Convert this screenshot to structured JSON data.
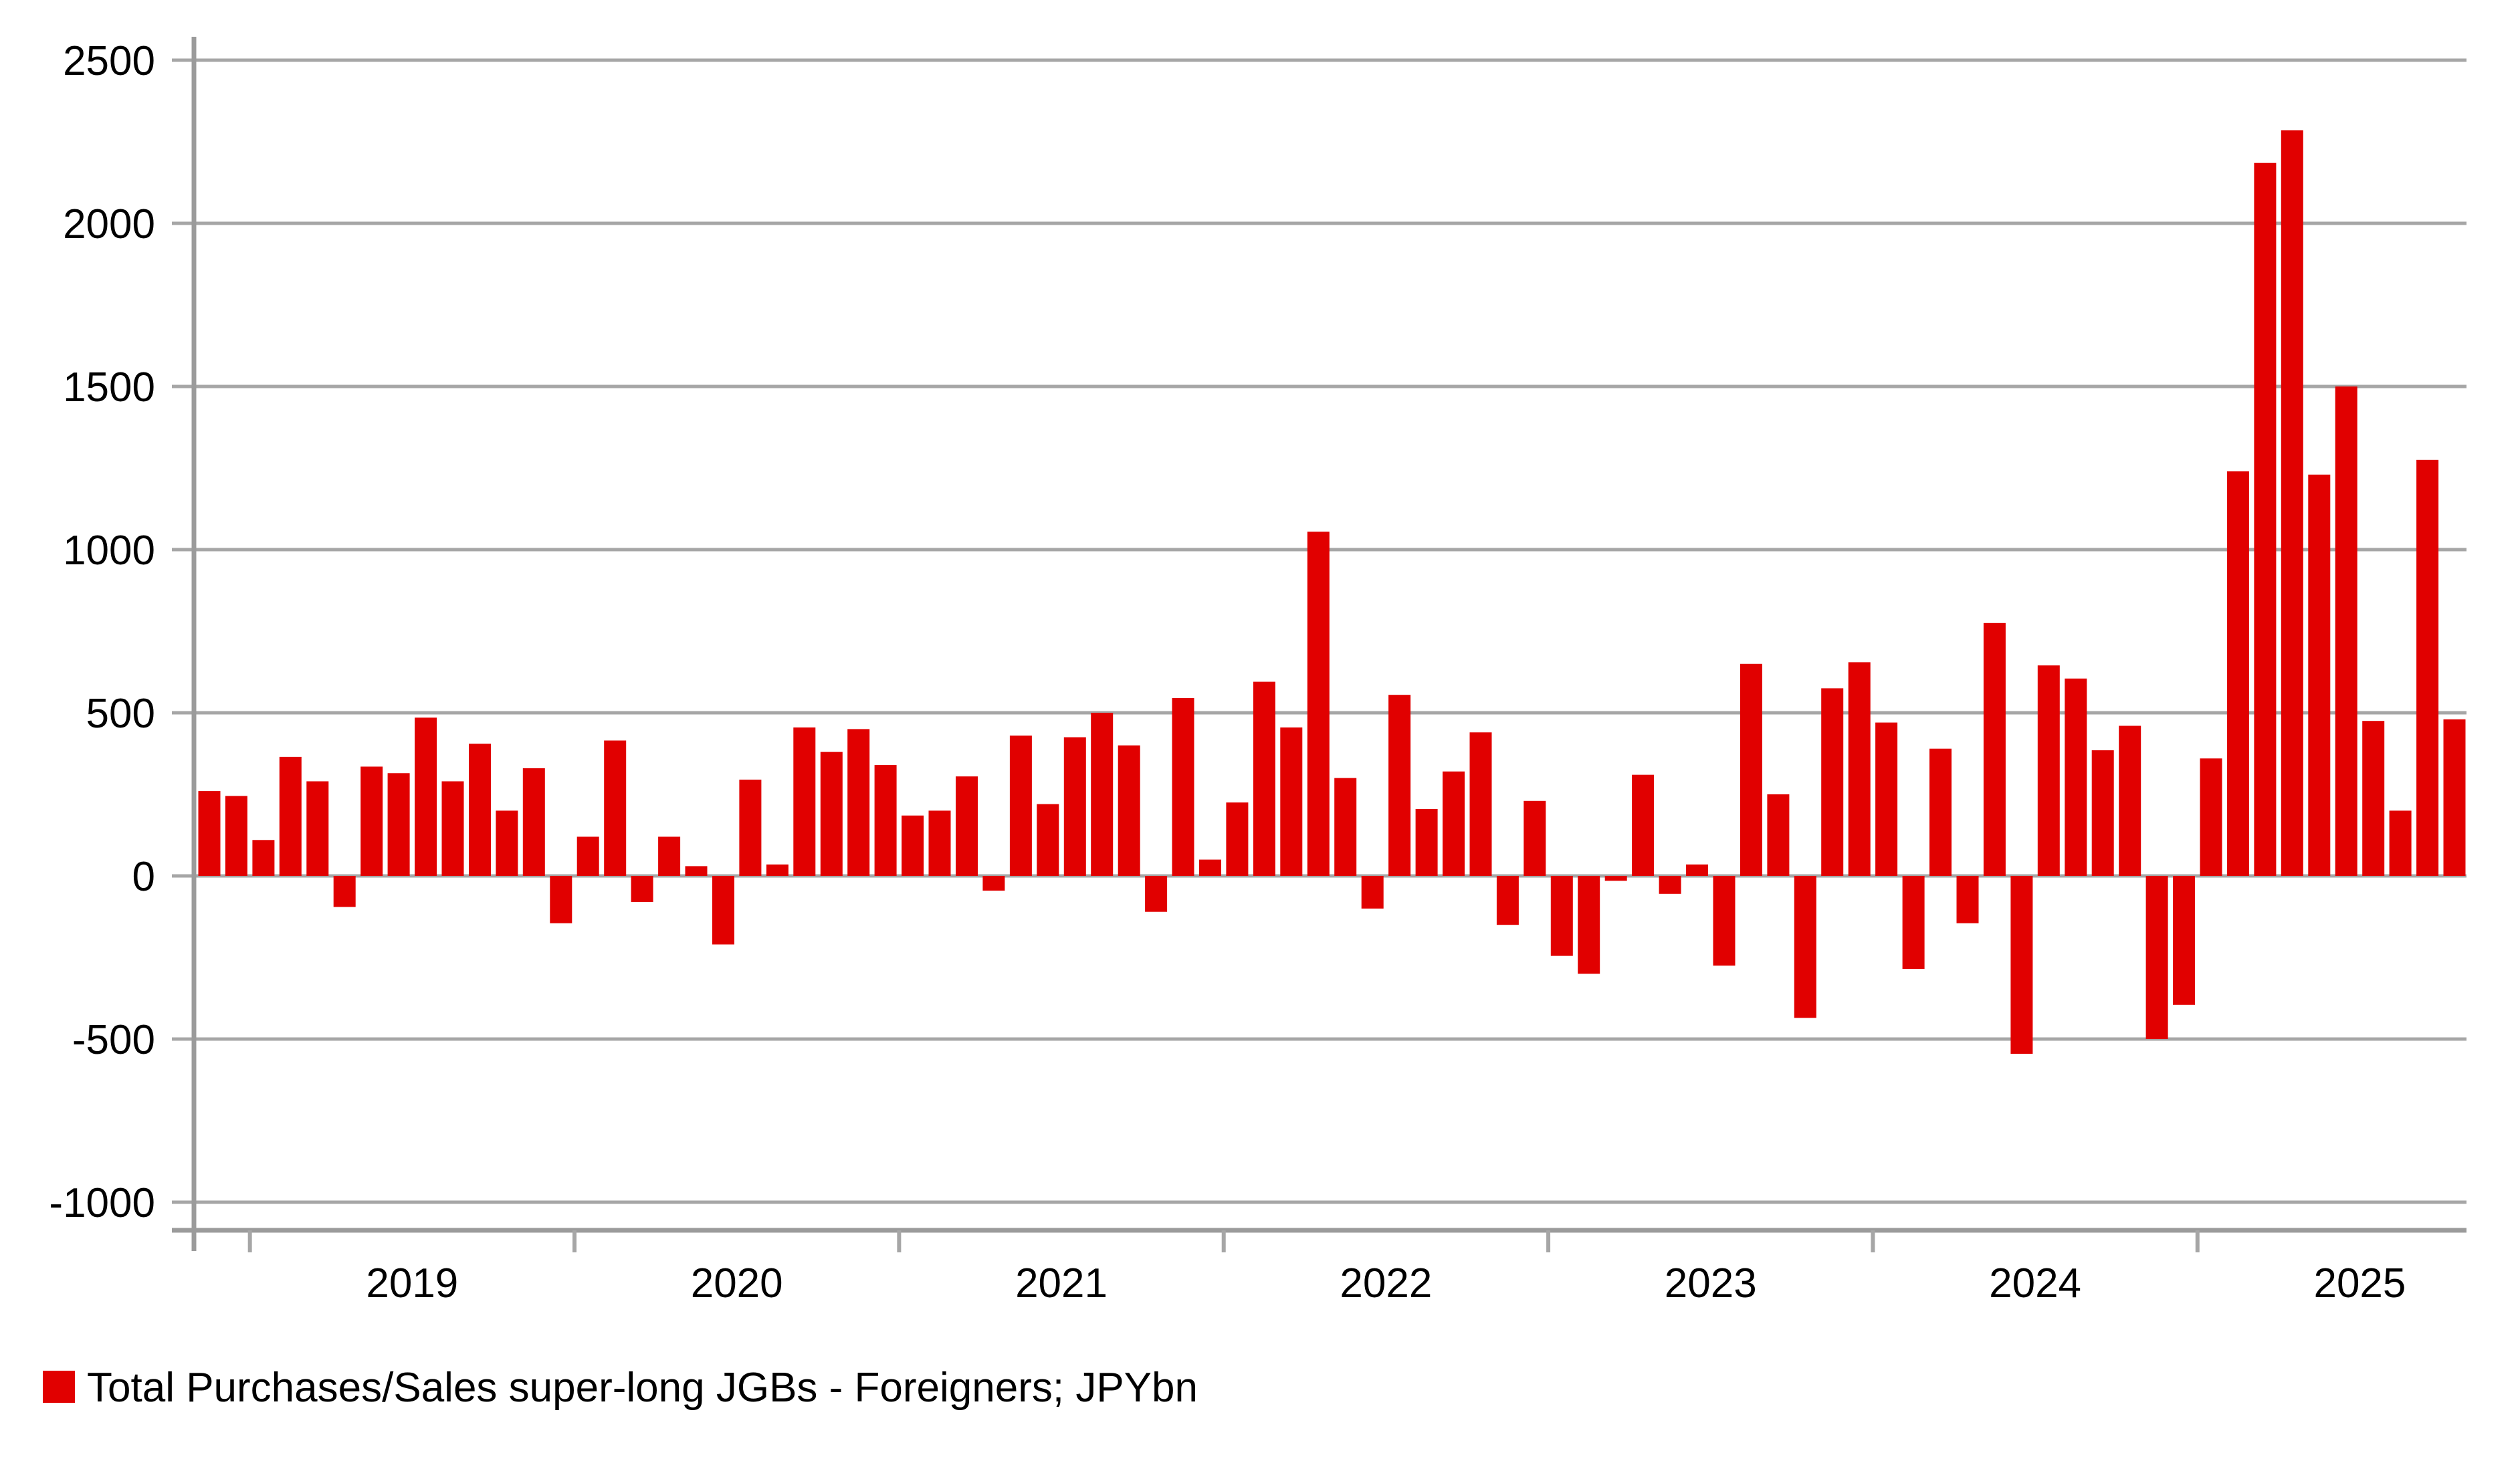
{
  "chart_data": {
    "type": "bar",
    "title": "",
    "categories": [
      "2018-11",
      "2018-12",
      "2019-01",
      "2019-02",
      "2019-03",
      "2019-04",
      "2019-05",
      "2019-06",
      "2019-07",
      "2019-08",
      "2019-09",
      "2019-10",
      "2019-11",
      "2019-12",
      "2020-01",
      "2020-02",
      "2020-03",
      "2020-04",
      "2020-05",
      "2020-06",
      "2020-07",
      "2020-08",
      "2020-09",
      "2020-10",
      "2020-11",
      "2020-12",
      "2021-01",
      "2021-02",
      "2021-03",
      "2021-04",
      "2021-05",
      "2021-06",
      "2021-07",
      "2021-08",
      "2021-09",
      "2021-10",
      "2021-11",
      "2021-12",
      "2022-01",
      "2022-02",
      "2022-03",
      "2022-04",
      "2022-05",
      "2022-06",
      "2022-07",
      "2022-08",
      "2022-09",
      "2022-10",
      "2022-11",
      "2022-12",
      "2023-01",
      "2023-02",
      "2023-03",
      "2023-04",
      "2023-05",
      "2023-06",
      "2023-07",
      "2023-08",
      "2023-09",
      "2023-10",
      "2023-11",
      "2023-12",
      "2024-01",
      "2024-02",
      "2024-03",
      "2024-04",
      "2024-05",
      "2024-06",
      "2024-07",
      "2024-08",
      "2024-09",
      "2024-10",
      "2024-11",
      "2024-12",
      "2025-01",
      "2025-02",
      "2025-03",
      "2025-04",
      "2025-05",
      "2025-06",
      "2025-07",
      "2025-08",
      "2025-09",
      "2025-10"
    ],
    "series": [
      {
        "name": "Total Purchases/Sales super-long JGBs - Foreigners; JPYbn",
        "color": "#e10000",
        "values": [
          260,
          245,
          110,
          365,
          290,
          -95,
          335,
          315,
          485,
          290,
          405,
          200,
          330,
          -145,
          120,
          415,
          -80,
          120,
          30,
          -210,
          295,
          35,
          455,
          380,
          450,
          340,
          185,
          200,
          305,
          -45,
          430,
          220,
          425,
          500,
          400,
          -110,
          545,
          50,
          225,
          595,
          455,
          1055,
          300,
          -100,
          555,
          205,
          320,
          440,
          -150,
          230,
          -245,
          -300,
          -15,
          310,
          -55,
          35,
          -275,
          650,
          250,
          -435,
          575,
          655,
          470,
          -285,
          390,
          -145,
          775,
          -545,
          645,
          605,
          385,
          460,
          -500,
          -395,
          360,
          1240,
          2185,
          2285,
          1230,
          1500,
          475,
          200,
          1275,
          480
        ]
      }
    ],
    "xlabel": "",
    "ylabel": "",
    "ylim": [
      -1000,
      2500
    ],
    "yticks": [
      2500,
      2000,
      1500,
      1000,
      500,
      0,
      -500,
      -1000
    ],
    "xtick_year_labels": [
      "2019",
      "2020",
      "2021",
      "2022",
      "2023",
      "2024",
      "2025"
    ],
    "grid": true,
    "legend_position": "bottom-left",
    "colors": {
      "bar": "#e10000",
      "gridline": "#a6a6a6",
      "axis": "#9b9b9b",
      "text": "#000000",
      "background": "#ffffff"
    }
  },
  "legend": {
    "label": "Total Purchases/Sales super-long JGBs - Foreigners; JPYbn",
    "swatch_color": "#e10000"
  }
}
